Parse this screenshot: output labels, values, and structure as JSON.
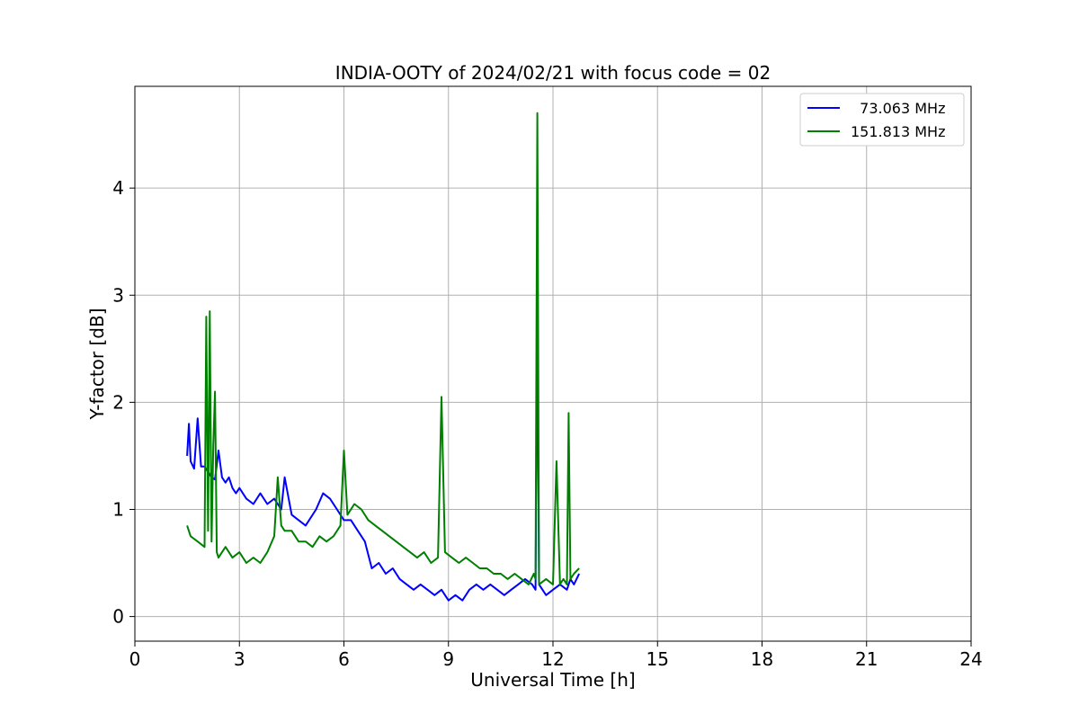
{
  "chart_data": {
    "type": "line",
    "title": "INDIA-OOTY of 2024/02/21 with focus code = 02",
    "xlabel": "Universal Time [h]",
    "ylabel": "Y-factor [dB]",
    "xlim": [
      0,
      24
    ],
    "ylim": [
      -0.23,
      4.95
    ],
    "xticks": [
      "0",
      "3",
      "6",
      "9",
      "12",
      "15",
      "18",
      "21",
      "24"
    ],
    "yticks": [
      "0",
      "1",
      "2",
      "3",
      "4"
    ],
    "grid": true,
    "legend_position": "top-right",
    "series": [
      {
        "name": "  73.063 MHz",
        "color": "#0000ff",
        "x": [
          1.5,
          1.55,
          1.6,
          1.7,
          1.8,
          1.9,
          2.0,
          2.1,
          2.2,
          2.3,
          2.4,
          2.5,
          2.6,
          2.7,
          2.8,
          2.9,
          3.0,
          3.2,
          3.4,
          3.6,
          3.8,
          4.0,
          4.2,
          4.3,
          4.5,
          4.7,
          4.9,
          5.0,
          5.2,
          5.4,
          5.6,
          5.8,
          6.0,
          6.2,
          6.4,
          6.6,
          6.8,
          7.0,
          7.2,
          7.4,
          7.6,
          7.8,
          8.0,
          8.2,
          8.4,
          8.6,
          8.8,
          9.0,
          9.2,
          9.4,
          9.6,
          9.8,
          10.0,
          10.2,
          10.4,
          10.6,
          10.8,
          11.0,
          11.2,
          11.4,
          11.5,
          11.55,
          11.6,
          11.8,
          12.0,
          12.2,
          12.4,
          12.5,
          12.6,
          12.75
        ],
        "y": [
          1.5,
          1.8,
          1.45,
          1.38,
          1.85,
          1.4,
          1.4,
          1.35,
          1.3,
          1.28,
          1.55,
          1.3,
          1.25,
          1.3,
          1.2,
          1.15,
          1.2,
          1.1,
          1.05,
          1.15,
          1.05,
          1.1,
          1.0,
          1.3,
          0.95,
          0.9,
          0.85,
          0.9,
          1.0,
          1.15,
          1.1,
          1.0,
          0.9,
          0.9,
          0.8,
          0.7,
          0.45,
          0.5,
          0.4,
          0.45,
          0.35,
          0.3,
          0.25,
          0.3,
          0.25,
          0.2,
          0.25,
          0.15,
          0.2,
          0.15,
          0.25,
          0.3,
          0.25,
          0.3,
          0.25,
          0.2,
          0.25,
          0.3,
          0.35,
          0.3,
          0.25,
          2.85,
          0.3,
          0.2,
          0.25,
          0.3,
          0.25,
          0.35,
          0.3,
          0.4
        ]
      },
      {
        "name": "151.813 MHz",
        "color": "#008000",
        "x": [
          1.5,
          1.6,
          1.8,
          2.0,
          2.05,
          2.1,
          2.15,
          2.2,
          2.25,
          2.3,
          2.35,
          2.4,
          2.5,
          2.6,
          2.8,
          3.0,
          3.2,
          3.4,
          3.6,
          3.8,
          4.0,
          4.1,
          4.2,
          4.3,
          4.5,
          4.7,
          4.9,
          5.1,
          5.3,
          5.5,
          5.7,
          5.9,
          6.0,
          6.1,
          6.3,
          6.5,
          6.7,
          6.9,
          7.1,
          7.3,
          7.5,
          7.7,
          7.9,
          8.1,
          8.3,
          8.5,
          8.7,
          8.8,
          8.9,
          9.1,
          9.3,
          9.5,
          9.7,
          9.9,
          10.1,
          10.3,
          10.5,
          10.7,
          10.9,
          11.1,
          11.3,
          11.45,
          11.5,
          11.55,
          11.6,
          11.8,
          12.0,
          12.1,
          12.2,
          12.3,
          12.4,
          12.45,
          12.5,
          12.6,
          12.75
        ],
        "y": [
          0.85,
          0.75,
          0.7,
          0.65,
          2.8,
          0.8,
          2.85,
          0.7,
          1.6,
          2.1,
          0.6,
          0.55,
          0.6,
          0.65,
          0.55,
          0.6,
          0.5,
          0.55,
          0.5,
          0.6,
          0.75,
          1.3,
          0.85,
          0.8,
          0.8,
          0.7,
          0.7,
          0.65,
          0.75,
          0.7,
          0.75,
          0.85,
          1.55,
          0.95,
          1.05,
          1.0,
          0.9,
          0.85,
          0.8,
          0.75,
          0.7,
          0.65,
          0.6,
          0.55,
          0.6,
          0.5,
          0.55,
          2.05,
          0.6,
          0.55,
          0.5,
          0.55,
          0.5,
          0.45,
          0.45,
          0.4,
          0.4,
          0.35,
          0.4,
          0.35,
          0.3,
          0.4,
          0.35,
          4.7,
          0.3,
          0.35,
          0.3,
          1.45,
          0.3,
          0.35,
          0.3,
          1.9,
          0.35,
          0.4,
          0.45
        ]
      }
    ]
  }
}
